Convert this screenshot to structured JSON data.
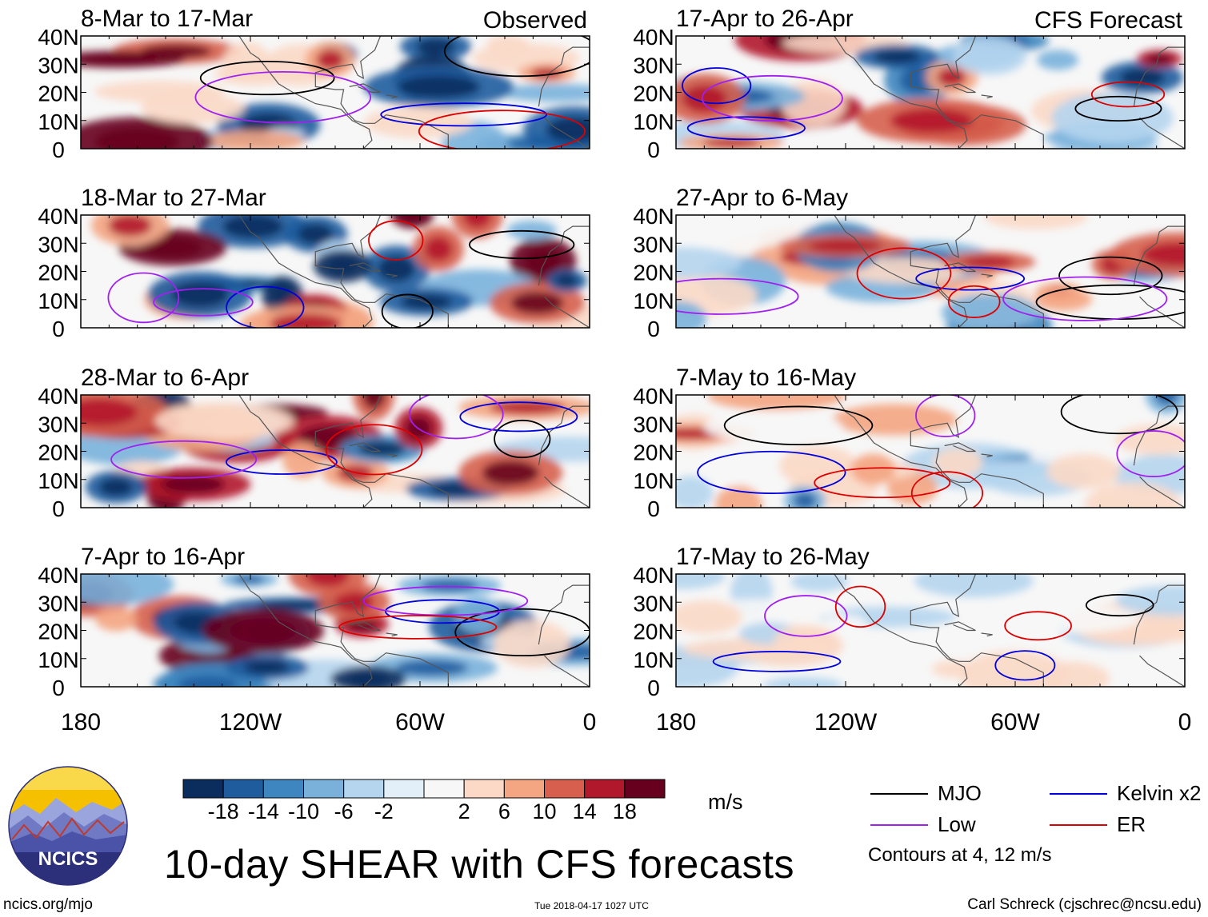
{
  "title": "10-day SHEAR with CFS forecasts",
  "footer": {
    "site": "ncics.org/mjo",
    "timestamp": "Tue 2018-04-17 1027 UTC",
    "author": "Carl Schreck (cjschrec@ncsu.edu)"
  },
  "logo": {
    "text": "NCICS",
    "colors": [
      "#f4b400",
      "#7b86c9",
      "#2c2f7a",
      "#ffffff"
    ]
  },
  "chart_data": {
    "type": "heatmap",
    "variable": "vertical wind shear anomaly",
    "units": "m/s",
    "columns": [
      {
        "tag": "Observed"
      },
      {
        "tag": "CFS Forecast"
      }
    ],
    "panels": [
      {
        "column": 0,
        "row": 0,
        "period": "8-Mar to 17-Mar"
      },
      {
        "column": 0,
        "row": 1,
        "period": "18-Mar to 27-Mar"
      },
      {
        "column": 0,
        "row": 2,
        "period": "28-Mar to 6-Apr"
      },
      {
        "column": 0,
        "row": 3,
        "period": "7-Apr to 16-Apr"
      },
      {
        "column": 1,
        "row": 0,
        "period": "17-Apr to 26-Apr"
      },
      {
        "column": 1,
        "row": 1,
        "period": "27-Apr to 6-May"
      },
      {
        "column": 1,
        "row": 2,
        "period": "7-May to 16-May"
      },
      {
        "column": 1,
        "row": 3,
        "period": "17-May to 26-May"
      }
    ],
    "lat_ticks": [
      "40N",
      "30N",
      "20N",
      "10N",
      "0"
    ],
    "lat_range": [
      0,
      40
    ],
    "lon_ticks": [
      "180",
      "120W",
      "60W",
      "0"
    ],
    "lon_range": [
      -180,
      0
    ],
    "colorbar": {
      "labels": [
        "-18",
        "-14",
        "-10",
        "-6",
        "-2",
        "2",
        "6",
        "10",
        "14",
        "18"
      ],
      "colors": [
        "#0b2d5e",
        "#1f5c9e",
        "#3e86bf",
        "#79b1db",
        "#b5d5ee",
        "#e2eff8",
        "#f7f7f7",
        "#fbd9c6",
        "#f4a582",
        "#d6604d",
        "#b2182b",
        "#67001f"
      ],
      "units_label": "m/s"
    },
    "legend": [
      {
        "name": "MJO",
        "color": "#000000"
      },
      {
        "name": "Kelvin x2",
        "color": "#0000dd"
      },
      {
        "name": "Low",
        "color": "#a020f0"
      },
      {
        "name": "ER",
        "color": "#dd0000"
      }
    ],
    "contour_note": "Contours at 4, 12 m/s"
  }
}
